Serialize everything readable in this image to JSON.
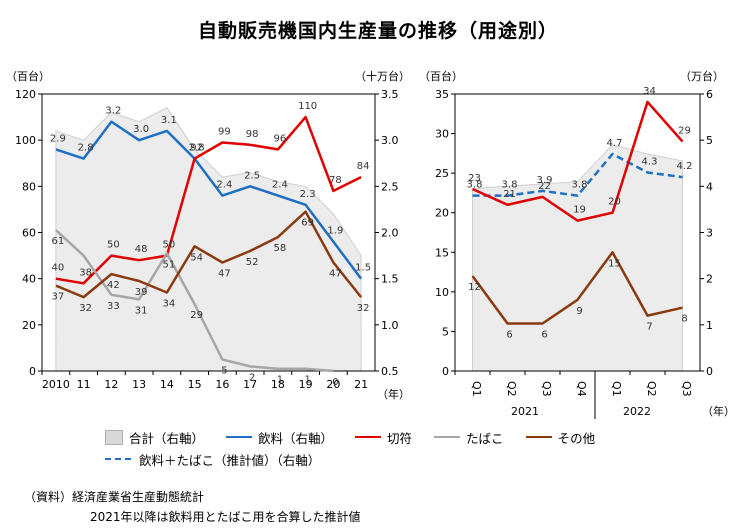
{
  "title": "自動販売機国内生産量の推移（用途別）",
  "colors": {
    "total_fill": "#ececec",
    "total_stroke": "#cfcfcf",
    "drinks": "#1f6fc5",
    "tickets": "#e00000",
    "tobacco": "#a6a6a6",
    "other": "#8b3a0f",
    "drink_tobacco": "#1f6fc5"
  },
  "legend": {
    "total": "合計（右軸）",
    "drinks": "飲料（右軸）",
    "tickets": "切符",
    "tobacco": "たばこ",
    "other": "その他",
    "drink_tobacco": "飲料＋たばこ（推計値）（右軸）"
  },
  "source": {
    "line1": "（資料）経済産業省生産動態統計",
    "line2": "2021年以降は飲料用とたばこ用を合算した推計値"
  },
  "chart_data": [
    {
      "type": "line",
      "left_unit": "（百台）",
      "right_unit": "（十万台）",
      "x_unit": "（年）",
      "categories": [
        "2010",
        "11",
        "12",
        "13",
        "14",
        "15",
        "16",
        "17",
        "18",
        "19",
        "20",
        "21"
      ],
      "ylim_left": [
        0,
        120
      ],
      "yticks_left": [
        "0",
        "20",
        "40",
        "60",
        "80",
        "100",
        "120"
      ],
      "ylim_right": [
        0.5,
        3.5
      ],
      "yticks_right": [
        "0.5",
        "1.0",
        "1.5",
        "2.0",
        "2.5",
        "3.0",
        "3.5"
      ],
      "series": [
        {
          "key": "total",
          "axis": "right",
          "style": "area",
          "values": [
            3.1,
            3.0,
            3.3,
            3.2,
            3.35,
            2.9,
            2.6,
            2.65,
            2.55,
            2.5,
            2.2,
            1.75
          ]
        },
        {
          "key": "drinks",
          "axis": "right",
          "values": [
            2.9,
            2.8,
            3.2,
            3.0,
            3.1,
            2.8,
            2.4,
            2.5,
            2.4,
            2.3,
            1.9,
            1.5
          ],
          "labels": [
            "2.9",
            "2.8",
            "3.2",
            "3.0",
            "3.1",
            "2.8",
            "2.4",
            "2.5",
            "2.4",
            "2.3",
            "1.9",
            "1.5"
          ]
        },
        {
          "key": "tickets",
          "axis": "left",
          "values": [
            40,
            38,
            50,
            48,
            50,
            92,
            99,
            98,
            96,
            110,
            78,
            84
          ],
          "labels": [
            "40",
            "38",
            "50",
            "48",
            "50",
            "92",
            "99",
            "98",
            "96",
            "110",
            "78",
            "84"
          ]
        },
        {
          "key": "tobacco",
          "axis": "left",
          "values": [
            61,
            50,
            33,
            31,
            51,
            29,
            5,
            2,
            1,
            1,
            0,
            null
          ],
          "labels": [
            "61",
            "",
            "33",
            "31",
            "51",
            "29",
            "5",
            "2",
            "1",
            "1",
            "0",
            ""
          ]
        },
        {
          "key": "other",
          "axis": "left",
          "values": [
            37,
            32,
            42,
            39,
            34,
            54,
            47,
            52,
            58,
            69,
            47,
            32
          ],
          "labels": [
            "37",
            "32",
            "42",
            "39",
            "34",
            "54",
            "47",
            "52",
            "58",
            "69",
            "47",
            "32"
          ]
        }
      ]
    },
    {
      "type": "line",
      "left_unit": "（百台）",
      "right_unit": "（万台）",
      "x_unit": "（年）",
      "categories": [
        "Q1",
        "Q2",
        "Q3",
        "Q4",
        "Q1",
        "Q2",
        "Q3"
      ],
      "year_labels": [
        "2021",
        "2022"
      ],
      "ylim_left": [
        0,
        35
      ],
      "yticks_left": [
        "0",
        "5",
        "10",
        "15",
        "20",
        "25",
        "30",
        "35"
      ],
      "ylim_right": [
        0,
        6
      ],
      "yticks_right": [
        "0",
        "1",
        "2",
        "3",
        "4",
        "5",
        "6"
      ],
      "series": [
        {
          "key": "total",
          "axis": "right",
          "style": "area",
          "values": [
            3.95,
            4.0,
            4.05,
            4.1,
            4.9,
            4.7,
            4.55
          ]
        },
        {
          "key": "drink_tobacco",
          "axis": "right",
          "style": "dashed",
          "values": [
            3.8,
            3.8,
            3.9,
            3.8,
            4.7,
            4.3,
            4.2
          ],
          "labels": [
            "3.8",
            "3.8",
            "3.9",
            "3.8",
            "4.7",
            "4.3",
            "4.2"
          ]
        },
        {
          "key": "tickets",
          "axis": "left",
          "values": [
            23,
            21,
            22,
            19,
            20,
            34,
            29
          ],
          "labels": [
            "23",
            "21",
            "22",
            "19",
            "20",
            "34",
            "29"
          ]
        },
        {
          "key": "other",
          "axis": "left",
          "values": [
            12,
            6,
            6,
            9,
            15,
            7,
            8
          ],
          "labels": [
            "12",
            "6",
            "6",
            "9",
            "15",
            "7",
            "8"
          ]
        }
      ]
    }
  ]
}
